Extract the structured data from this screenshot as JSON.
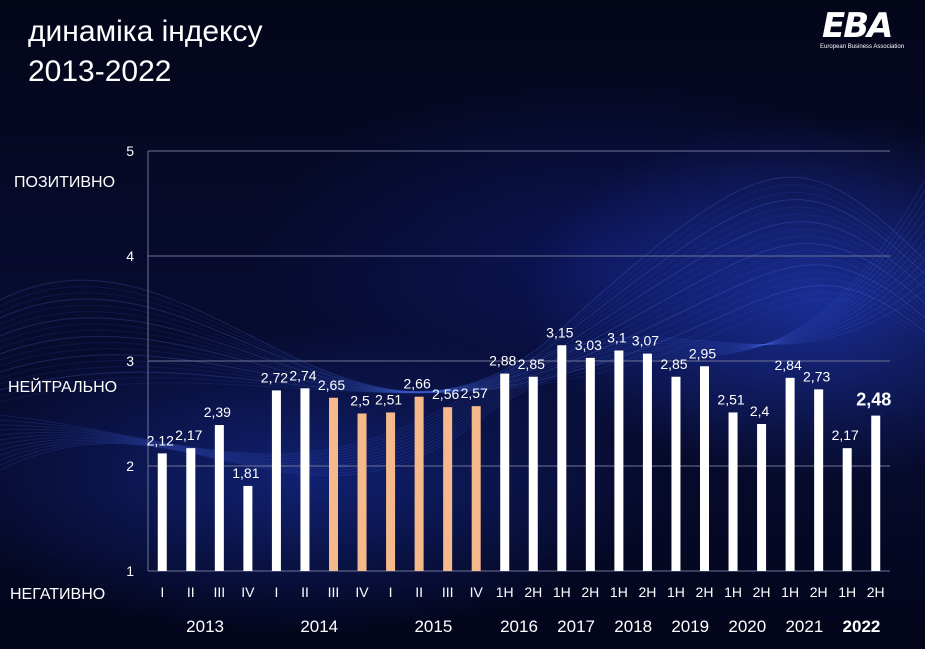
{
  "header": {
    "title_line1": "динаміка індексу",
    "title_line2": "2013-2022"
  },
  "logo": {
    "main": "EBA",
    "sub": "European Business Association"
  },
  "zones": {
    "positive": "ПОЗИТИВНО",
    "neutral": "НЕЙТРАЛЬНО",
    "negative": "НЕГАТИВНО"
  },
  "chart_data": {
    "type": "bar",
    "title": "динаміка індексу 2013-2022",
    "ylim": [
      1,
      5
    ],
    "yticks": [
      "1",
      "2",
      "3",
      "4",
      "5"
    ],
    "grid": true,
    "categories": [
      "I",
      "II",
      "III",
      "IV",
      "I",
      "II",
      "III",
      "IV",
      "I",
      "II",
      "III",
      "IV",
      "1H",
      "2H",
      "1H",
      "2H",
      "1H",
      "2H",
      "1H",
      "2H",
      "1H",
      "2H",
      "1H",
      "2H",
      "1H",
      "2H"
    ],
    "values": [
      2.12,
      2.17,
      2.39,
      1.81,
      2.72,
      2.74,
      2.65,
      2.5,
      2.51,
      2.66,
      2.56,
      2.57,
      2.88,
      2.85,
      3.15,
      3.03,
      3.1,
      3.07,
      2.85,
      2.95,
      2.51,
      2.4,
      2.84,
      2.73,
      2.17,
      2.48
    ],
    "value_labels": [
      "2,12",
      "2,17",
      "2,39",
      "1,81",
      "2,72",
      "2,74",
      "2,65",
      "2,5",
      "2,51",
      "2,66",
      "2,56",
      "2,57",
      "2,88",
      "2,85",
      "3,15",
      "3,03",
      "3,1",
      "3,07",
      "2,85",
      "2,95",
      "2,51",
      "2,4",
      "2,84",
      "2,73",
      "2,17",
      "2,48"
    ],
    "highlighted": [
      false,
      false,
      false,
      false,
      false,
      false,
      true,
      true,
      true,
      true,
      true,
      true,
      false,
      false,
      false,
      false,
      false,
      false,
      false,
      false,
      false,
      false,
      false,
      false,
      false,
      false
    ],
    "emphasized": [
      false,
      false,
      false,
      false,
      false,
      false,
      false,
      false,
      false,
      false,
      false,
      false,
      false,
      false,
      false,
      false,
      false,
      false,
      false,
      false,
      false,
      false,
      false,
      false,
      false,
      true
    ],
    "years": [
      {
        "label": "2013",
        "from": 0,
        "to": 3,
        "bold": false
      },
      {
        "label": "2014",
        "from": 4,
        "to": 7,
        "bold": false
      },
      {
        "label": "2015",
        "from": 8,
        "to": 11,
        "bold": false
      },
      {
        "label": "2016",
        "from": 12,
        "to": 13,
        "bold": false
      },
      {
        "label": "2017",
        "from": 14,
        "to": 15,
        "bold": false
      },
      {
        "label": "2018",
        "from": 16,
        "to": 17,
        "bold": false
      },
      {
        "label": "2019",
        "from": 18,
        "to": 19,
        "bold": false
      },
      {
        "label": "2020",
        "from": 20,
        "to": 21,
        "bold": false
      },
      {
        "label": "2021",
        "from": 22,
        "to": 23,
        "bold": false
      },
      {
        "label": "2022",
        "from": 24,
        "to": 25,
        "bold": true
      }
    ],
    "colors": {
      "bar": "#ffffff",
      "bar_highlight": "#f6b98c",
      "grid": "#6e7396"
    }
  }
}
